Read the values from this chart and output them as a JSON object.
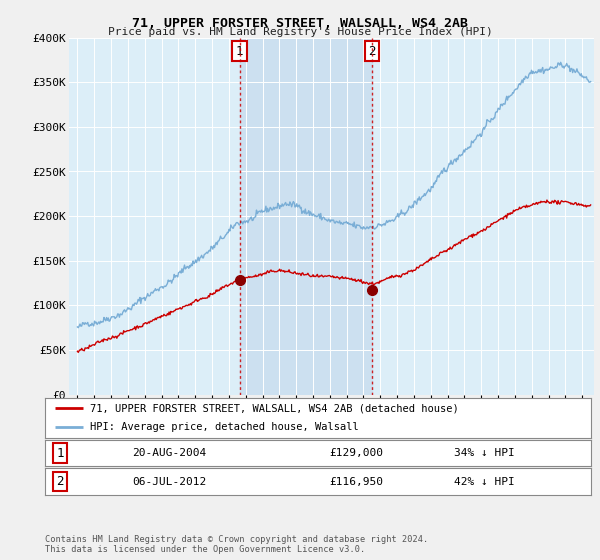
{
  "title": "71, UPPER FORSTER STREET, WALSALL, WS4 2AB",
  "subtitle": "Price paid vs. HM Land Registry's House Price Index (HPI)",
  "legend_entry1": "71, UPPER FORSTER STREET, WALSALL, WS4 2AB (detached house)",
  "legend_entry2": "HPI: Average price, detached house, Walsall",
  "footnote": "Contains HM Land Registry data © Crown copyright and database right 2024.\nThis data is licensed under the Open Government Licence v3.0.",
  "sale1_date": "20-AUG-2004",
  "sale1_price": "£129,000",
  "sale1_hpi": "34% ↓ HPI",
  "sale2_date": "06-JUL-2012",
  "sale2_price": "£116,950",
  "sale2_hpi": "42% ↓ HPI",
  "sale1_x": 2004.64,
  "sale1_y": 129000,
  "sale2_x": 2012.51,
  "sale2_y": 116950,
  "hpi_color": "#7aaed6",
  "sale_color": "#cc0000",
  "bg_color": "#dceef8",
  "highlight_color": "#cce0f0",
  "grid_color": "#c8d8e8",
  "ylim": [
    0,
    400000
  ],
  "xlim": [
    1994.5,
    2025.7
  ],
  "yticks": [
    0,
    50000,
    100000,
    150000,
    200000,
    250000,
    300000,
    350000,
    400000
  ],
  "ytick_labels": [
    "£0",
    "£50K",
    "£100K",
    "£150K",
    "£200K",
    "£250K",
    "£300K",
    "£350K",
    "£400K"
  ]
}
